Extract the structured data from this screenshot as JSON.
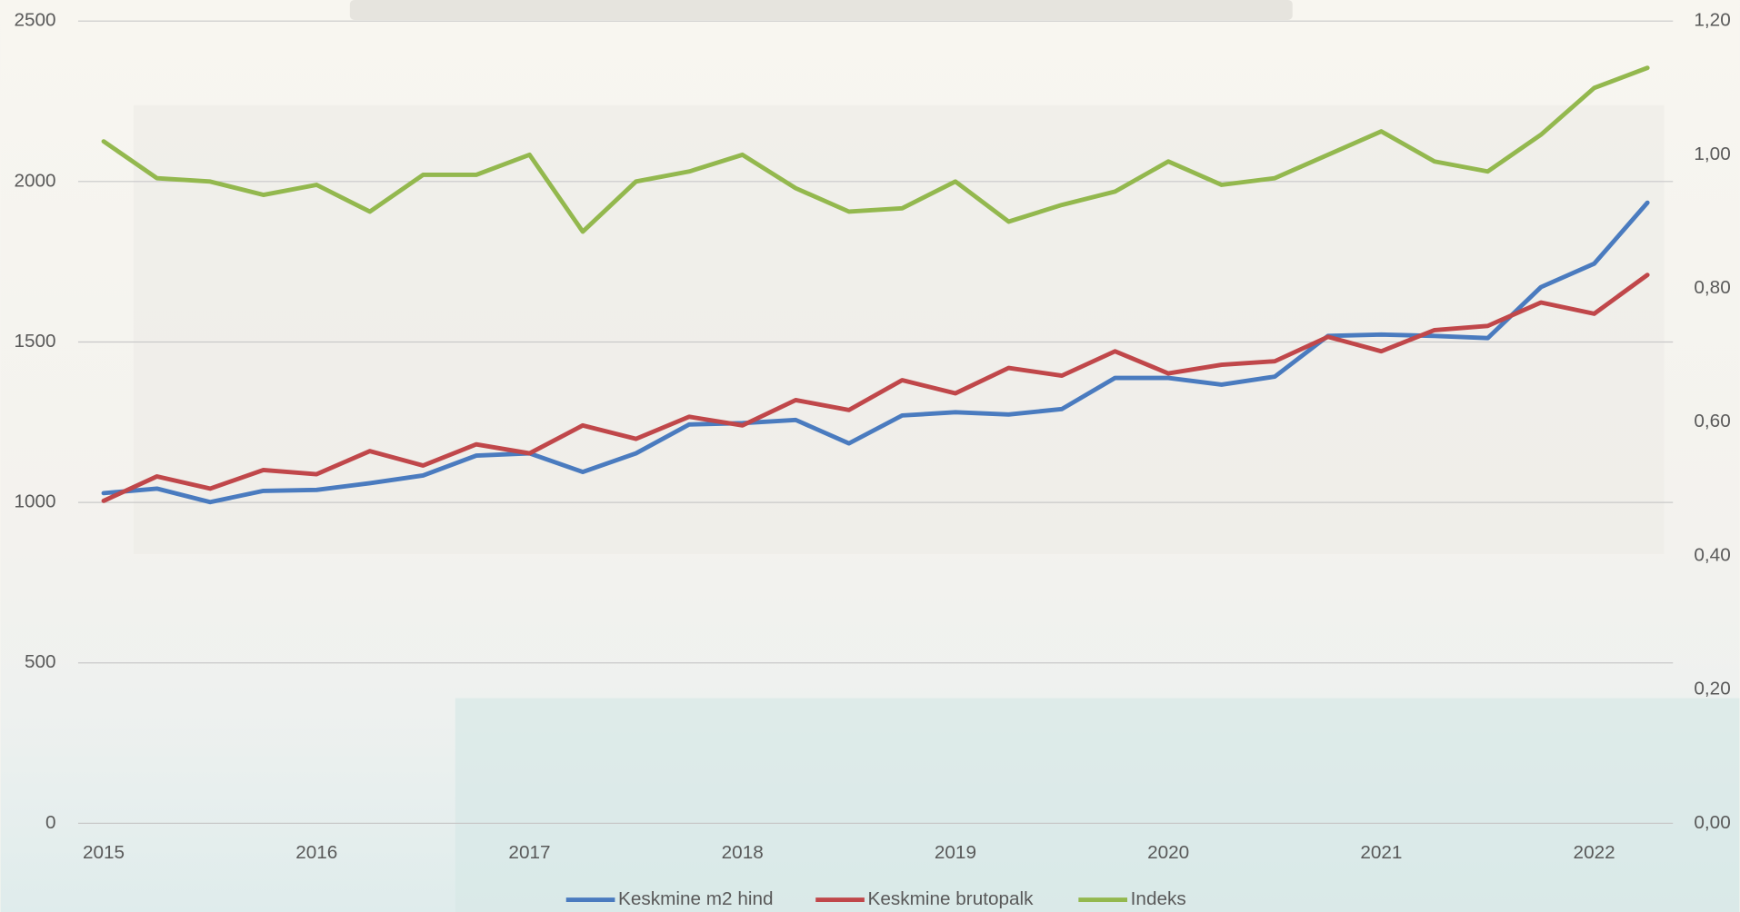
{
  "chart_data": {
    "type": "line",
    "categories": [
      "2015",
      null,
      null,
      null,
      "2016",
      null,
      null,
      null,
      "2017",
      null,
      null,
      null,
      "2018",
      null,
      null,
      null,
      "2019",
      null,
      null,
      null,
      "2020",
      null,
      null,
      null,
      "2021",
      null,
      null,
      null,
      "2022",
      null
    ],
    "series": [
      {
        "name": "Keskmine m2 hind",
        "color": "#4a7bbf",
        "values": [
          1029,
          1043,
          1001,
          1036,
          1039,
          1060,
          1084,
          1146,
          1153,
          1095,
          1153,
          1243,
          1247,
          1257,
          1184,
          1271,
          1281,
          1274,
          1291,
          1388,
          1388,
          1367,
          1392,
          1519,
          1523,
          1519,
          1512,
          1671,
          1744,
          1934
        ]
      },
      {
        "name": "Keskmine brutopalk",
        "color": "#c0474a",
        "values": [
          1005,
          1081,
          1043,
          1101,
          1088,
          1160,
          1115,
          1181,
          1153,
          1240,
          1198,
          1267,
          1240,
          1319,
          1288,
          1381,
          1340,
          1419,
          1395,
          1471,
          1402,
          1429,
          1440,
          1516,
          1471,
          1537,
          1550,
          1623,
          1588,
          1709
        ]
      },
      {
        "name": "Indeks",
        "color": "#93b84e",
        "axis": "y2",
        "values": [
          1.02,
          0.965,
          0.96,
          0.94,
          0.955,
          0.915,
          0.97,
          0.97,
          1.0,
          0.885,
          0.96,
          0.975,
          1.0,
          0.95,
          0.915,
          0.92,
          0.96,
          0.9,
          0.925,
          0.945,
          0.99,
          0.955,
          0.965,
          1.0,
          1.035,
          0.99,
          0.975,
          1.03,
          1.1,
          1.13
        ]
      }
    ],
    "ylim": [
      0,
      2500
    ],
    "yticks": [
      0,
      500,
      1000,
      1500,
      2000,
      2500
    ],
    "y2lim": [
      0,
      1.2
    ],
    "y2ticks": [
      {
        "value": 0,
        "label": "0,00"
      },
      {
        "value": 0.2,
        "label": "0,20"
      },
      {
        "value": 0.4,
        "label": "0,40"
      },
      {
        "value": 0.6,
        "label": "0,60"
      },
      {
        "value": 0.8,
        "label": "0,80"
      },
      {
        "value": 1.0,
        "label": "1,00"
      },
      {
        "value": 1.2,
        "label": "1,20"
      }
    ],
    "grid": true,
    "legend": "bottom"
  }
}
